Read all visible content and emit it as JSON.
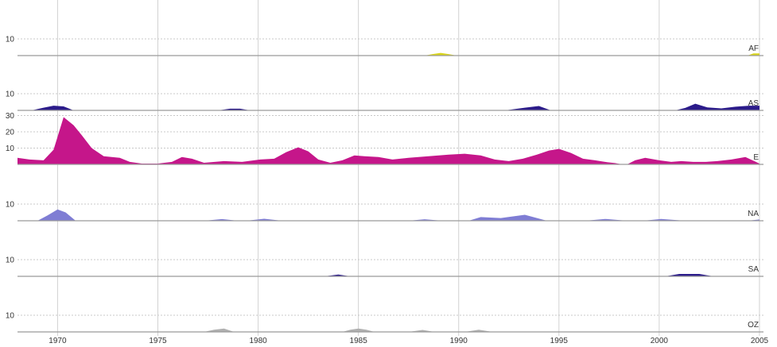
{
  "chart_data": {
    "type": "area",
    "x_ticks": [
      1970,
      1975,
      1980,
      1985,
      1990,
      1995,
      2000,
      2005
    ],
    "xlim": [
      1968,
      2005.2
    ],
    "grid": true,
    "panels": [
      {
        "name": "AF",
        "color": "#d8d41a",
        "ylim": [
          0,
          16
        ],
        "y_ticks": [
          10
        ],
        "x": [
          1988.3,
          1988.7,
          1989.1,
          1989.5,
          1989.9,
          2004.4,
          2004.7,
          2005.0
        ],
        "values": [
          0,
          0.9,
          1.6,
          0.9,
          0,
          0,
          1.3,
          1.3
        ]
      },
      {
        "name": "AS",
        "color": "#2b1b8a",
        "ylim": [
          0,
          16
        ],
        "y_ticks": [
          10
        ],
        "x": [
          1968.7,
          1969.3,
          1969.8,
          1970.3,
          1970.8,
          1978.0,
          1978.6,
          1979.1,
          1979.6,
          1992.3,
          1993.3,
          1994.0,
          1994.6,
          2000.8,
          2001.3,
          2001.8,
          2002.4,
          2003.1,
          2003.8,
          2004.5,
          2005.0
        ],
        "values": [
          0,
          1.6,
          2.8,
          2.4,
          0,
          0,
          1.0,
          1.0,
          0,
          0,
          1.6,
          2.6,
          0,
          0,
          1.5,
          4.0,
          1.8,
          1.2,
          2.2,
          2.8,
          2.8
        ]
      },
      {
        "name": "E",
        "color": "#c5168a",
        "ylim": [
          0,
          30
        ],
        "y_ticks": [
          10,
          20,
          30
        ],
        "x": [
          1968.0,
          1968.6,
          1969.3,
          1969.8,
          1970.3,
          1970.8,
          1971.2,
          1971.7,
          1972.3,
          1973.1,
          1973.6,
          1974.2,
          1975.0,
          1975.7,
          1976.2,
          1976.7,
          1977.3,
          1978.3,
          1979.2,
          1980.1,
          1980.8,
          1981.4,
          1982.0,
          1982.5,
          1983.0,
          1983.6,
          1984.2,
          1984.8,
          1985.3,
          1986.0,
          1986.7,
          1987.5,
          1988.5,
          1989.5,
          1990.3,
          1991.1,
          1991.8,
          1992.5,
          1993.2,
          1993.9,
          1994.5,
          1995.0,
          1995.6,
          1996.2,
          1996.8,
          1997.3,
          1997.8,
          1998.1,
          1998.4,
          1998.8,
          1999.3,
          2000.0,
          2000.6,
          2001.1,
          2001.7,
          2002.3,
          2002.9,
          2003.6,
          2004.3,
          2005.0
        ],
        "values": [
          4,
          3,
          2.5,
          9,
          29,
          24,
          18,
          10,
          5,
          4,
          1.5,
          0.5,
          0.5,
          1.5,
          4.5,
          3.5,
          1,
          2,
          1.5,
          3,
          3.5,
          7.5,
          10.5,
          8,
          3,
          1,
          2.5,
          5.5,
          5,
          4.5,
          3,
          4,
          5,
          6,
          6.5,
          5.5,
          3,
          2,
          3.5,
          6,
          8.5,
          9.5,
          7,
          3.5,
          2.5,
          1.5,
          0.8,
          0.1,
          0,
          2.5,
          4,
          2.5,
          1.5,
          2,
          1.5,
          1.5,
          2,
          3,
          4.5,
          0.5
        ]
      },
      {
        "name": "NA",
        "color": "#7f7dd4",
        "ylim": [
          0,
          16
        ],
        "y_ticks": [
          10
        ],
        "x": [
          1969.0,
          1969.5,
          1970.0,
          1970.4,
          1970.9,
          1977.3,
          1978.2,
          1979.0,
          1979.4,
          1980.3,
          1981.2,
          1987.5,
          1988.3,
          1989.2,
          1990.5,
          1991.1,
          1992.1,
          1993.3,
          1994.4,
          1996.3,
          1997.3,
          1998.4,
          1999.2,
          2000.1,
          2001.3,
          2004.4,
          2005.0
        ],
        "values": [
          0,
          3.2,
          6.8,
          5,
          0,
          0,
          1.0,
          0,
          0,
          1.2,
          0,
          0,
          0.9,
          0,
          0,
          2.2,
          1.6,
          3.6,
          0,
          0,
          1.1,
          0,
          0,
          1.1,
          0,
          0,
          0.8
        ]
      },
      {
        "name": "SA",
        "color": "#2b1b8a",
        "ylim": [
          0,
          16
        ],
        "y_ticks": [
          10
        ],
        "x": [
          1983.3,
          1984.0,
          1984.6,
          2000.3,
          2001.0,
          2002.0,
          2002.7
        ],
        "values": [
          0,
          1.1,
          0,
          0,
          1.4,
          1.4,
          0
        ]
      },
      {
        "name": "OZ",
        "color": "#b0b0b0",
        "ylim": [
          0,
          16
        ],
        "y_ticks": [
          10
        ],
        "x": [
          1977.3,
          1977.8,
          1978.3,
          1978.8,
          1984.2,
          1984.6,
          1985.0,
          1985.4,
          1985.8,
          1987.5,
          1988.2,
          1988.8,
          1990.3,
          1991.0,
          1991.7
        ],
        "values": [
          0,
          1.3,
          2.0,
          0,
          0,
          1.3,
          2.0,
          1.3,
          0,
          0,
          1.2,
          0,
          0,
          1.3,
          0
        ]
      }
    ]
  }
}
